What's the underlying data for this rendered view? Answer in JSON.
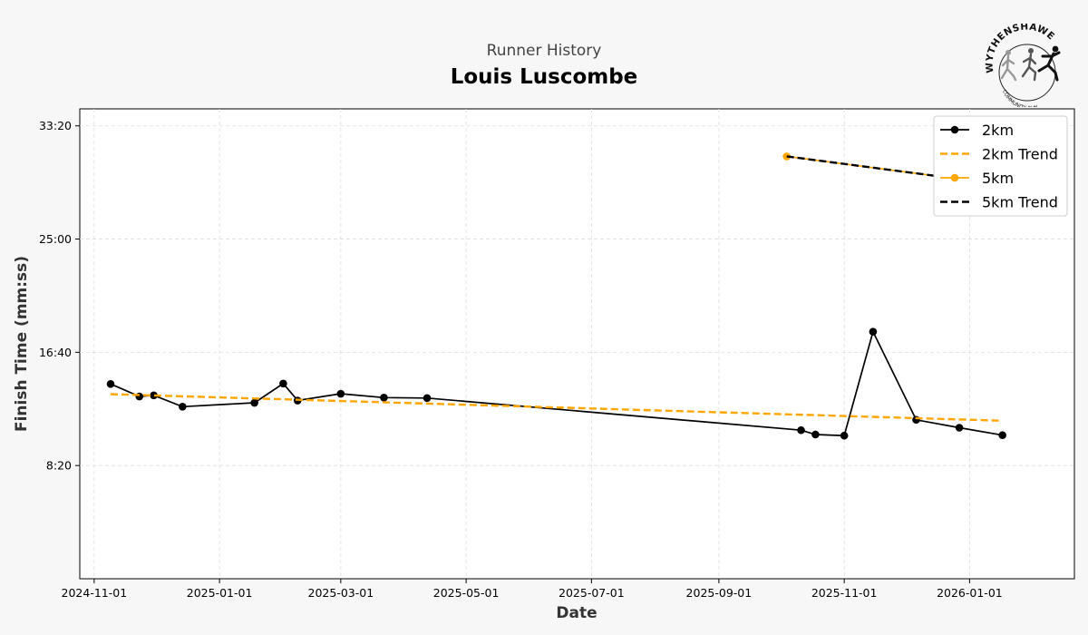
{
  "header": {
    "subtitle": "Runner History",
    "title": "Louis Luscombe"
  },
  "logo": {
    "name": "WYTHENSHAWE",
    "subtext": "COMMUNITY RUN"
  },
  "colors": {
    "black": "#000000",
    "orange": "#ffa500",
    "grid": "#dddddd",
    "background": "#f7f7f7"
  },
  "chart_data": {
    "type": "line",
    "title": "Louis Luscombe",
    "subtitle": "Runner History",
    "xlabel": "Date",
    "ylabel": "Finish Time (mm:ss)",
    "xlim": [
      "2024-10-25",
      "2026-02-21"
    ],
    "ylim": [
      0,
      2075
    ],
    "x_ticks": [
      "2024-11-01",
      "2025-01-01",
      "2025-03-01",
      "2025-05-01",
      "2025-07-01",
      "2025-09-01",
      "2025-11-01",
      "2026-01-01"
    ],
    "y_ticks": [
      {
        "value": 500,
        "label": "8:20"
      },
      {
        "value": 1000,
        "label": "16:40"
      },
      {
        "value": 1500,
        "label": "25:00"
      },
      {
        "value": 2000,
        "label": "33:20"
      }
    ],
    "grid": true,
    "legend_position": "top-right",
    "series": [
      {
        "name": "2km",
        "kind": "line-marker",
        "color": "#000000",
        "x": [
          "2024-11-09",
          "2024-11-23",
          "2024-11-30",
          "2024-12-14",
          "2025-01-18",
          "2025-02-01",
          "2025-02-08",
          "2025-03-01",
          "2025-03-22",
          "2025-04-12",
          "2025-10-11",
          "2025-10-18",
          "2025-11-01",
          "2025-11-15",
          "2025-12-06",
          "2025-12-27",
          "2026-01-17"
        ],
        "values": [
          860,
          805,
          810,
          760,
          777,
          862,
          787,
          817,
          800,
          798,
          656,
          637,
          632,
          1091,
          702,
          667,
          634
        ]
      },
      {
        "name": "2km Trend",
        "kind": "dashed",
        "color": "#ffa500",
        "x": [
          "2024-11-09",
          "2026-01-17"
        ],
        "values": [
          815,
          698
        ]
      },
      {
        "name": "5km",
        "kind": "line-marker",
        "color": "#ffa500",
        "x": [
          "2025-10-04",
          "2026-01-24"
        ],
        "values": [
          1865,
          1732
        ]
      },
      {
        "name": "5km Trend",
        "kind": "dashed",
        "color": "#000000",
        "x": [
          "2025-10-04",
          "2026-01-24"
        ],
        "values": [
          1865,
          1732
        ]
      }
    ]
  }
}
